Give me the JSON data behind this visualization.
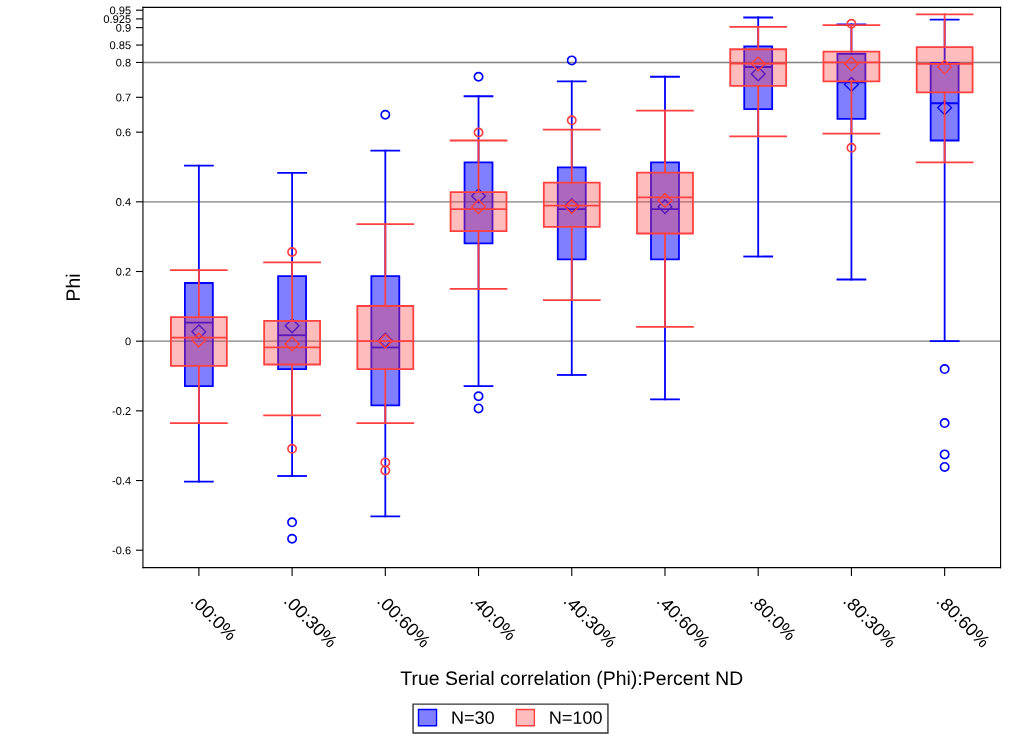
{
  "chart_data": {
    "type": "box",
    "xlabel": "True Serial correlation (Phi):Percent ND",
    "ylabel": "Phi",
    "categories": [
      ".00:0%",
      ".00:30%",
      ".00:60%",
      ".40:0%",
      ".40:30%",
      ".40:60%",
      ".80:0%",
      ".80:30%",
      ".80:60%"
    ],
    "ylim": [
      -0.65,
      0.958
    ],
    "yticks": [
      -0.6,
      -0.4,
      -0.2,
      0,
      0.2,
      0.4,
      0.6,
      0.7,
      0.8,
      0.85,
      0.9,
      0.925,
      0.95
    ],
    "legend": "bottom",
    "grid": false,
    "ref_lines": [
      {
        "axis": "y",
        "value": 0,
        "color": "#808080"
      },
      {
        "axis": "y",
        "value": 0.4,
        "color": "#808080"
      },
      {
        "axis": "y",
        "value": 0.8,
        "color": "#808080"
      }
    ],
    "series": [
      {
        "name": "N=30",
        "color": "#0000ff",
        "boxes": [
          {
            "low": -0.403,
            "q1": -0.129,
            "median": 0.053,
            "q3": 0.167,
            "high": 0.504,
            "mean": 0.027
          },
          {
            "low": -0.387,
            "q1": -0.08,
            "median": 0.017,
            "q3": 0.187,
            "high": 0.483,
            "mean": 0.044,
            "outliers": [
              -0.52,
              -0.567
            ]
          },
          {
            "low": -0.503,
            "q1": -0.184,
            "median": -0.018,
            "q3": 0.187,
            "high": 0.547,
            "mean": 0.003,
            "outliers": [
              0.65
            ]
          },
          {
            "low": -0.129,
            "q1": 0.281,
            "median": 0.379,
            "q3": 0.513,
            "high": 0.703,
            "mean": 0.417,
            "outliers": [
              0.759,
              -0.158,
              -0.193
            ]
          },
          {
            "low": -0.097,
            "q1": 0.235,
            "median": 0.379,
            "q3": 0.499,
            "high": 0.746,
            "mean": 0.389,
            "outliers": [
              0.806
            ]
          },
          {
            "low": -0.167,
            "q1": 0.235,
            "median": 0.379,
            "q3": 0.513,
            "high": 0.759,
            "mean": 0.386
          },
          {
            "low": 0.243,
            "q1": 0.666,
            "median": 0.787,
            "q3": 0.846,
            "high": 0.929,
            "mean": 0.767
          },
          {
            "low": 0.177,
            "q1": 0.638,
            "median": 0.743,
            "q3": 0.825,
            "high": 0.909,
            "mean": 0.737
          },
          {
            "low": 0.0,
            "q1": 0.576,
            "median": 0.683,
            "q3": 0.799,
            "high": 0.923,
            "mean": 0.67,
            "outliers": [
              -0.08,
              -0.235,
              -0.325,
              -0.361
            ]
          }
        ]
      },
      {
        "name": "N=100",
        "color": "#ff4040",
        "boxes": [
          {
            "low": -0.235,
            "q1": -0.071,
            "median": 0.01,
            "q3": 0.069,
            "high": 0.204,
            "mean": 0.003
          },
          {
            "low": -0.213,
            "q1": -0.067,
            "median": -0.018,
            "q3": 0.058,
            "high": 0.226,
            "mean": -0.008,
            "outliers": [
              0.256,
              -0.309
            ]
          },
          {
            "low": -0.235,
            "q1": -0.08,
            "median": 0.0,
            "q3": 0.101,
            "high": 0.336,
            "mean": 0.0,
            "outliers": [
              -0.348,
              -0.371
            ]
          },
          {
            "low": 0.15,
            "q1": 0.316,
            "median": 0.379,
            "q3": 0.428,
            "high": 0.576,
            "mean": 0.386,
            "outliers": [
              0.599
            ]
          },
          {
            "low": 0.118,
            "q1": 0.328,
            "median": 0.389,
            "q3": 0.455,
            "high": 0.607,
            "mean": 0.386,
            "outliers": [
              0.634
            ]
          },
          {
            "low": 0.041,
            "q1": 0.309,
            "median": 0.413,
            "q3": 0.484,
            "high": 0.662,
            "mean": 0.404
          },
          {
            "low": 0.588,
            "q1": 0.733,
            "median": 0.797,
            "q3": 0.838,
            "high": 0.902,
            "mean": 0.796
          },
          {
            "low": 0.596,
            "q1": 0.746,
            "median": 0.8,
            "q3": 0.831,
            "high": 0.907,
            "mean": 0.796,
            "outliers": [
              0.911,
              0.555
            ]
          },
          {
            "low": 0.513,
            "q1": 0.714,
            "median": 0.796,
            "q3": 0.844,
            "high": 0.938,
            "mean": 0.787
          }
        ]
      }
    ]
  }
}
